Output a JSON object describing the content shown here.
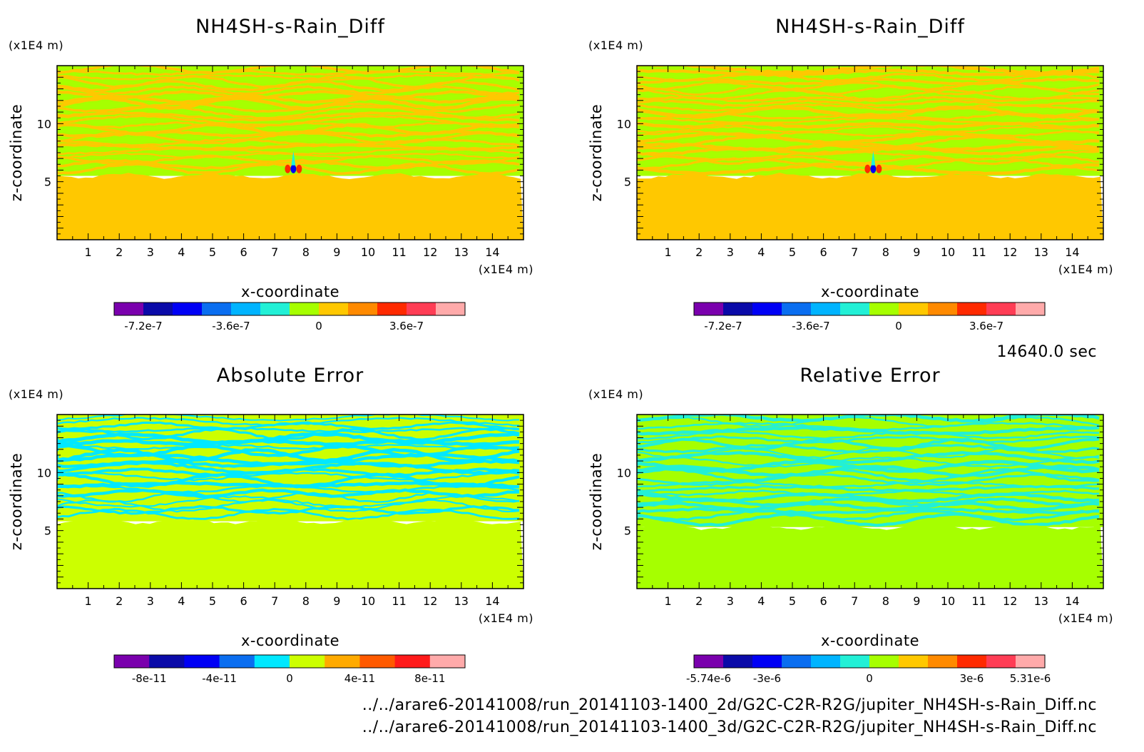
{
  "time_label": "14640.0 sec",
  "footer": {
    "path_2d": "../../arare6-20141008/run_20141103-1400_2d/G2C-C2R-R2G/jupiter_NH4SH-s-Rain_Diff.nc",
    "path_3d": "../../arare6-20141008/run_20141103-1400_3d/G2C-C2R-R2G/jupiter_NH4SH-s-Rain_Diff.nc"
  },
  "chart_data": [
    {
      "type": "heatmap",
      "title": "NH4SH-s-Rain_Diff",
      "xlabel": "x-coordinate",
      "ylabel": "z-coordinate",
      "x_unit": "(x1E4 m)",
      "y_unit": "(x1E4 m)",
      "xlim": [
        0,
        15
      ],
      "ylim": [
        0,
        15
      ],
      "xticks": [
        1,
        2,
        3,
        4,
        5,
        6,
        7,
        8,
        9,
        10,
        11,
        12,
        13,
        14
      ],
      "yticks": [
        5,
        10
      ],
      "colorbar": {
        "colors": [
          "#7a00ad",
          "#0a0aa8",
          "#0000f5",
          "#0a6ef0",
          "#00b4ff",
          "#22f0d6",
          "#a6ff00",
          "#ffc800",
          "#ff8a00",
          "#ff2a00",
          "#ff3d55",
          "#ffaaaa"
        ],
        "tick_values": [
          "-7.2e-7",
          "-3.6e-7",
          "0",
          "3.6e-7"
        ]
      },
      "pattern": {
        "lower_value_color": "#ffc800",
        "upper_colors": [
          "#a6ff00",
          "#ffc800"
        ],
        "boundary_z": 5.5,
        "feature": "small convective plume near x=7.6, z=6"
      }
    },
    {
      "type": "heatmap",
      "title": "NH4SH-s-Rain_Diff",
      "xlabel": "x-coordinate",
      "ylabel": "z-coordinate",
      "x_unit": "(x1E4 m)",
      "y_unit": "(x1E4 m)",
      "xlim": [
        0,
        15
      ],
      "ylim": [
        0,
        15
      ],
      "xticks": [
        1,
        2,
        3,
        4,
        5,
        6,
        7,
        8,
        9,
        10,
        11,
        12,
        13,
        14
      ],
      "yticks": [
        5,
        10
      ],
      "colorbar": {
        "colors": [
          "#7a00ad",
          "#0a0aa8",
          "#0000f5",
          "#0a6ef0",
          "#00b4ff",
          "#22f0d6",
          "#a6ff00",
          "#ffc800",
          "#ff8a00",
          "#ff2a00",
          "#ff3d55",
          "#ffaaaa"
        ],
        "tick_values": [
          "-7.2e-7",
          "-3.6e-7",
          "0",
          "3.6e-7"
        ]
      },
      "pattern": {
        "lower_value_color": "#ffc800",
        "upper_colors": [
          "#a6ff00",
          "#ffc800"
        ],
        "boundary_z": 5.5,
        "feature": "small convective plume near x=7.6, z=6"
      }
    },
    {
      "type": "heatmap",
      "title": "Absolute Error",
      "xlabel": "x-coordinate",
      "ylabel": "z-coordinate",
      "x_unit": "(x1E4 m)",
      "y_unit": "(x1E4 m)",
      "xlim": [
        0,
        15
      ],
      "ylim": [
        0,
        15
      ],
      "xticks": [
        1,
        2,
        3,
        4,
        5,
        6,
        7,
        8,
        9,
        10,
        11,
        12,
        13,
        14
      ],
      "yticks": [
        5,
        10
      ],
      "colorbar": {
        "colors": [
          "#7a00ad",
          "#0a0aa8",
          "#0000f5",
          "#0a6ef0",
          "#00e8ff",
          "#ccff00",
          "#ffaa00",
          "#ff5a00",
          "#ff1a1a",
          "#ffaaaa"
        ],
        "tick_values": [
          "-8e-11",
          "-4e-11",
          "0",
          "4e-11",
          "8e-11"
        ]
      },
      "pattern": {
        "lower_value_color": "#ccff00",
        "upper_colors": [
          "#ccff00",
          "#00e8ff"
        ],
        "boundary_z": 5.8
      }
    },
    {
      "type": "heatmap",
      "title": "Relative Error",
      "xlabel": "x-coordinate",
      "ylabel": "z-coordinate",
      "x_unit": "(x1E4 m)",
      "y_unit": "(x1E4 m)",
      "xlim": [
        0,
        15
      ],
      "ylim": [
        0,
        15
      ],
      "xticks": [
        1,
        2,
        3,
        4,
        5,
        6,
        7,
        8,
        9,
        10,
        11,
        12,
        13,
        14
      ],
      "yticks": [
        5,
        10
      ],
      "colorbar": {
        "colors": [
          "#7a00ad",
          "#0a0aa8",
          "#0000f5",
          "#0a6ef0",
          "#00b4ff",
          "#22f0d6",
          "#a6ff00",
          "#ffc800",
          "#ff8a00",
          "#ff2a00",
          "#ff3d55",
          "#ffaaaa"
        ],
        "tick_values": [
          "-5.74e-6",
          "-3e-6",
          "0",
          "3e-6",
          "5.31e-6"
        ]
      },
      "pattern": {
        "lower_value_color": "#a6ff00",
        "upper_colors": [
          "#a6ff00",
          "#22f0d6"
        ],
        "boundary_z": 5.3
      }
    }
  ]
}
